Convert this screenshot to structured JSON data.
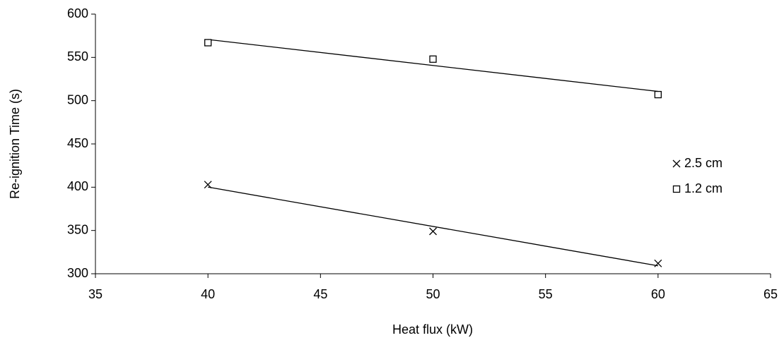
{
  "chart_data": {
    "type": "scatter",
    "x_label": "Heat flux  (kW)",
    "y_label": "Re-ignition Time (s)",
    "x": [
      40,
      50,
      60
    ],
    "series": [
      {
        "name": "2.5 cm",
        "color": "#000000",
        "marker": "x",
        "values": [
          403,
          349,
          312
        ]
      },
      {
        "name": "1.2 cm",
        "color": "#000000",
        "marker": "square",
        "values": [
          567,
          548,
          507
        ]
      }
    ],
    "trendline": "linear",
    "xlim": [
      35,
      65
    ],
    "xticks": [
      35,
      40,
      45,
      50,
      55,
      60,
      65
    ],
    "ylim": [
      300,
      600
    ],
    "yticks": [
      300,
      350,
      400,
      450,
      500,
      550,
      600
    ],
    "grid": false,
    "legend": "right"
  }
}
